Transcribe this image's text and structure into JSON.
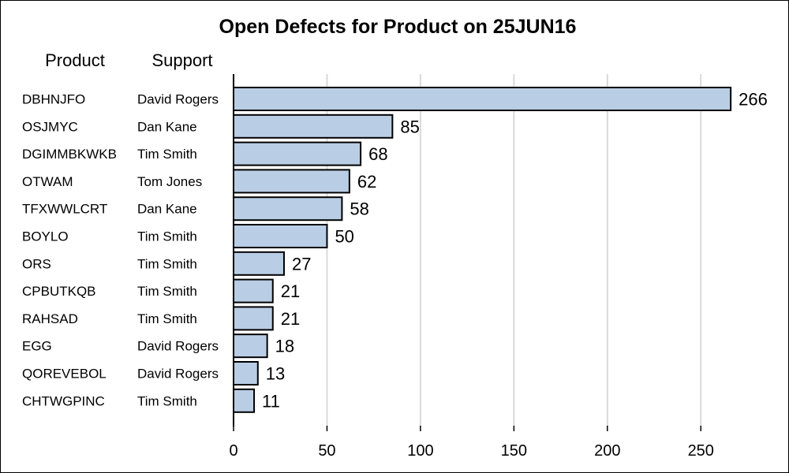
{
  "chart_data": {
    "type": "bar",
    "orientation": "horizontal",
    "title": "Open Defects for Product on 25JUN16",
    "column_headers": {
      "product": "Product",
      "support": "Support"
    },
    "categories": [
      "DBHNJFO",
      "OSJMYC",
      "DGIMMBKWKB",
      "OTWAM",
      "TFXWWLCRT",
      "BOYLO",
      "ORS",
      "CPBUTKQB",
      "RAHSAD",
      "EGG",
      "QOREVEBOL",
      "CHTWGPINC"
    ],
    "support": [
      "David Rogers",
      "Dan Kane",
      "Tim Smith",
      "Tom Jones",
      "Dan Kane",
      "Tim Smith",
      "Tim Smith",
      "Tim Smith",
      "Tim Smith",
      "David Rogers",
      "David Rogers",
      "Tim Smith"
    ],
    "values": [
      266,
      85,
      68,
      62,
      58,
      50,
      27,
      21,
      21,
      18,
      13,
      11
    ],
    "xlabel": "",
    "ylabel": "",
    "xlim": [
      0,
      285
    ],
    "xticks": [
      0,
      50,
      100,
      150,
      200,
      250
    ],
    "grid": "vertical",
    "legend": "none",
    "colors": {
      "bar_fill": "#b9cde5",
      "bar_stroke": "#000000",
      "grid": "#d9d9d9",
      "axis": "#000000"
    }
  }
}
